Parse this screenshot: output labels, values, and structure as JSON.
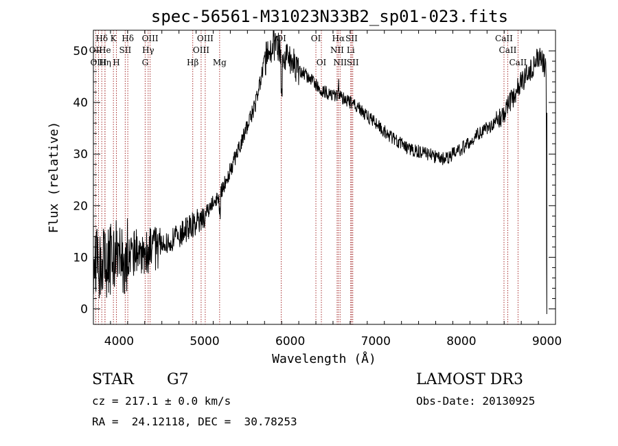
{
  "chart_data": {
    "type": "line",
    "title": "spec-56561-M31023N33B2_sp01-023.fits",
    "xlabel": "Wavelength (Å)",
    "ylabel": "Flux (relative)",
    "xlim": [
      3700,
      9100
    ],
    "ylim": [
      -3,
      54
    ],
    "xticks": [
      4000,
      5000,
      6000,
      7000,
      8000,
      9000
    ],
    "yticks": [
      0,
      10,
      20,
      30,
      40,
      50
    ],
    "continuum": {
      "x": [
        3700,
        3800,
        4000,
        4200,
        4400,
        4600,
        4800,
        5000,
        5200,
        5400,
        5600,
        5700,
        5800,
        5900,
        6000,
        6200,
        6400,
        6600,
        6800,
        7000,
        7200,
        7400,
        7600,
        7800,
        8000,
        8200,
        8400,
        8500,
        8600,
        8700,
        8800,
        8900,
        8950,
        8990
      ],
      "y": [
        8,
        9,
        10,
        11,
        11.5,
        13,
        15.5,
        18,
        23,
        31,
        40,
        48,
        51,
        50,
        48,
        45,
        42,
        41,
        39,
        36,
        33,
        31,
        30,
        29,
        31,
        34,
        36,
        38,
        41,
        44,
        46,
        49,
        48,
        46
      ]
    },
    "noise_seed": 56561,
    "spectral_lines": [
      {
        "label": "Hδ",
        "wavelength": 3798,
        "row": 1
      },
      {
        "label": "OII",
        "wavelength": 3727,
        "row": 2
      },
      {
        "label": "OIII",
        "wavelength": 3760,
        "row": 3
      },
      {
        "label": "He",
        "wavelength": 3835,
        "row": 2
      },
      {
        "label": "Hη",
        "wavelength": 3836,
        "row": 3
      },
      {
        "label": "K",
        "wavelength": 3934,
        "row": 1
      },
      {
        "label": "H",
        "wavelength": 3969,
        "row": 3
      },
      {
        "label": "SII",
        "wavelength": 4072,
        "row": 2
      },
      {
        "label": "Hδ",
        "wavelength": 4102,
        "row": 1
      },
      {
        "label": "OIII",
        "wavelength": 4363,
        "row": 1
      },
      {
        "label": "Hγ",
        "wavelength": 4340,
        "row": 2
      },
      {
        "label": "G",
        "wavelength": 4305,
        "row": 3
      },
      {
        "label": "Hβ",
        "wavelength": 4861,
        "row": 3
      },
      {
        "label": "OIII",
        "wavelength": 4959,
        "row": 2
      },
      {
        "label": "OIII",
        "wavelength": 5007,
        "row": 1
      },
      {
        "label": "Mg",
        "wavelength": 5175,
        "row": 3
      },
      {
        "label": "OI",
        "wavelength": 5895,
        "row": 0
      },
      {
        "label": "OI",
        "wavelength": 6300,
        "row": 1
      },
      {
        "label": "OI",
        "wavelength": 6364,
        "row": 3
      },
      {
        "label": "NII",
        "wavelength": 6548,
        "row": 2
      },
      {
        "label": "NII",
        "wavelength": 6583,
        "row": 3
      },
      {
        "label": "Hα",
        "wavelength": 6563,
        "row": 1
      },
      {
        "label": "SII",
        "wavelength": 6717,
        "row": 1
      },
      {
        "label": "Li",
        "wavelength": 6707,
        "row": 2
      },
      {
        "label": "SII",
        "wavelength": 6731,
        "row": 3
      },
      {
        "label": "CaII",
        "wavelength": 8498,
        "row": 1
      },
      {
        "label": "CaII",
        "wavelength": 8542,
        "row": 2
      },
      {
        "label": "CaII",
        "wavelength": 8662,
        "row": 3
      }
    ]
  },
  "info": {
    "object_class": "STAR",
    "subclass": "G7",
    "survey": "LAMOST DR3",
    "cz": "cz = 217.1 ± 0.0 km/s",
    "obs_date": "Obs-Date: 20130925",
    "coords": "RA =  24.12118, DEC =  30.78253"
  },
  "colors": {
    "line_marker": "#a52a2a",
    "spectrum": "#000000"
  }
}
